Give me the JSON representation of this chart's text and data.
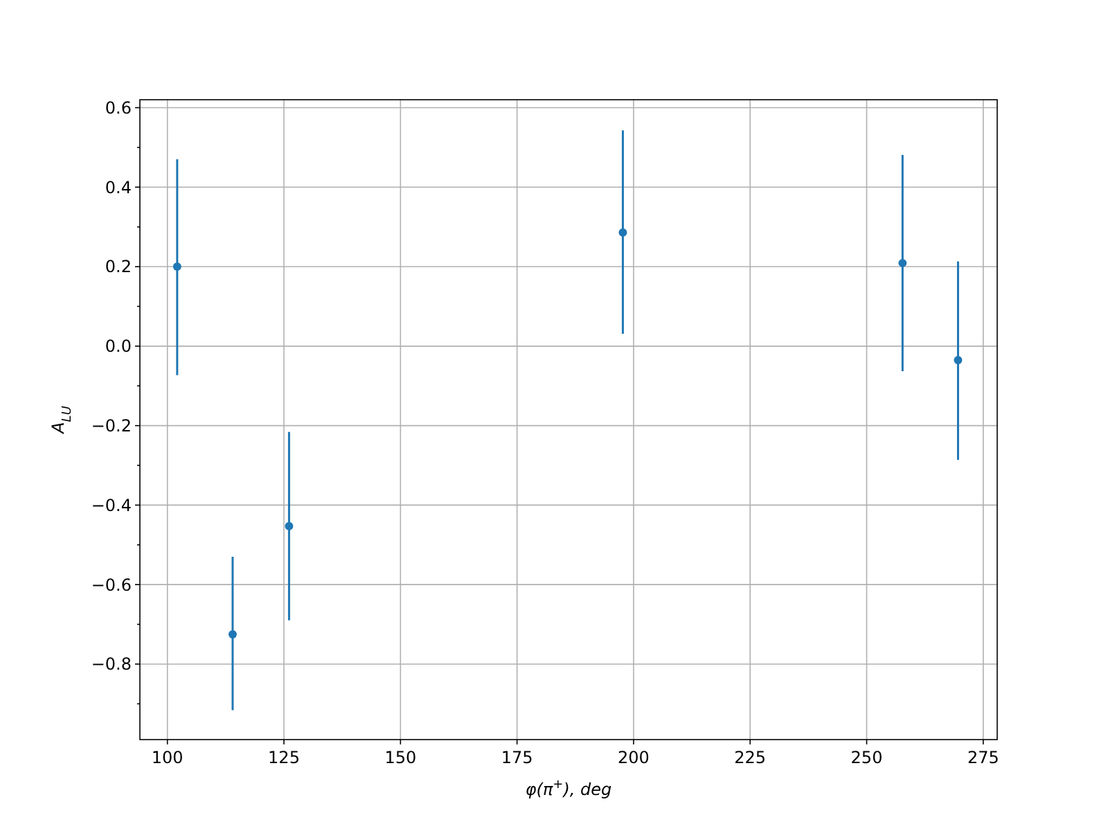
{
  "chart_data": {
    "type": "scatter",
    "xlabel": "φ(π$^{+}$), deg",
    "ylabel": "A$_{LU}$",
    "x": [
      102.1,
      114,
      126.1,
      197.7,
      257.7,
      269.6
    ],
    "series": [
      {
        "color": "#1f77b4",
        "values": [
          0.2,
          -0.725,
          -0.453,
          0.286,
          0.209,
          -0.035
        ],
        "errors": [
          [
            0.47,
            -0.073
          ],
          [
            -0.53,
            -0.916
          ],
          [
            -0.216,
            -0.69
          ],
          [
            0.543,
            0.031
          ],
          [
            0.481,
            -0.063
          ],
          [
            0.213,
            -0.286
          ]
        ]
      }
    ],
    "xlim": [
      94.1,
      278
    ],
    "ylim": [
      -0.99,
      0.62
    ],
    "xticks": [
      100,
      125,
      150,
      175,
      200,
      225,
      250,
      275
    ],
    "yticks": [
      {
        "value": -0.8,
        "label": "−0.8"
      },
      {
        "value": -0.6,
        "label": "−0.6"
      },
      {
        "value": -0.4,
        "label": "−0.4"
      },
      {
        "value": -0.2,
        "label": "−0.2"
      },
      {
        "value": 0,
        "label": "0.0"
      },
      {
        "value": 0.2,
        "label": "0.2"
      },
      {
        "value": 0.4,
        "label": "0.4"
      },
      {
        "value": 0.6,
        "label": "0.6"
      },
      {
        "value": -0.9,
        "label": null
      },
      {
        "value": -0.7,
        "label": null
      },
      {
        "value": -0.5,
        "label": null
      },
      {
        "value": -0.3,
        "label": null
      },
      {
        "value": -0.1,
        "label": null
      },
      {
        "value": 0.1,
        "label": null
      },
      {
        "value": 0.3,
        "label": null
      },
      {
        "value": 0.5,
        "label": null
      }
    ],
    "grid": true,
    "marker": "circle"
  }
}
